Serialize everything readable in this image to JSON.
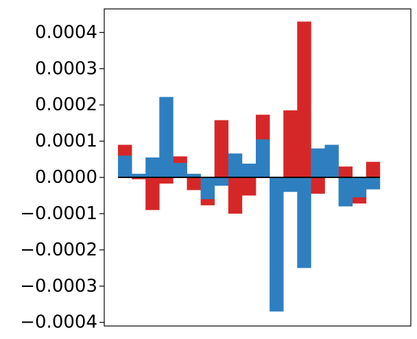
{
  "chart_data": {
    "type": "bar",
    "title": "",
    "xlabel": "",
    "ylabel": "",
    "ylim": [
      -0.00041,
      0.000465
    ],
    "yticks": [
      0.0004,
      0.0003,
      0.0002,
      0.0001,
      0.0,
      -0.0001,
      -0.0002,
      -0.0003,
      -0.0004
    ],
    "ytick_labels": [
      "0.0004",
      "0.0003",
      "0.0002",
      "0.0001",
      "0.0000",
      "−0.0001",
      "−0.0002",
      "−0.0003",
      "−0.0004"
    ],
    "x_ticks_shown": false,
    "grid": false,
    "legend": "none",
    "bars_overlap": true,
    "zero_line": true,
    "series": [
      {
        "color": "#d62728",
        "values": [
          9e-05,
          -5e-06,
          -9e-05,
          -1.7e-05,
          5.8e-05,
          -3.5e-05,
          -7.7e-05,
          0.000158,
          -0.0001,
          -5e-05,
          0.000173,
          0.0,
          0.000185,
          0.00043,
          -4.5e-05,
          0.0,
          3e-05,
          -7.2e-05,
          4.3e-05
        ]
      },
      {
        "color": "#2e7fbf",
        "values": [
          6e-05,
          1e-05,
          5.5e-05,
          0.000222,
          4e-05,
          1e-05,
          -6e-05,
          -2.3e-05,
          6.6e-05,
          3.8e-05,
          0.000105,
          -0.00037,
          -4e-05,
          -0.00025,
          8e-05,
          9e-05,
          -8e-05,
          -5.5e-05,
          -3.3e-05
        ]
      }
    ]
  }
}
